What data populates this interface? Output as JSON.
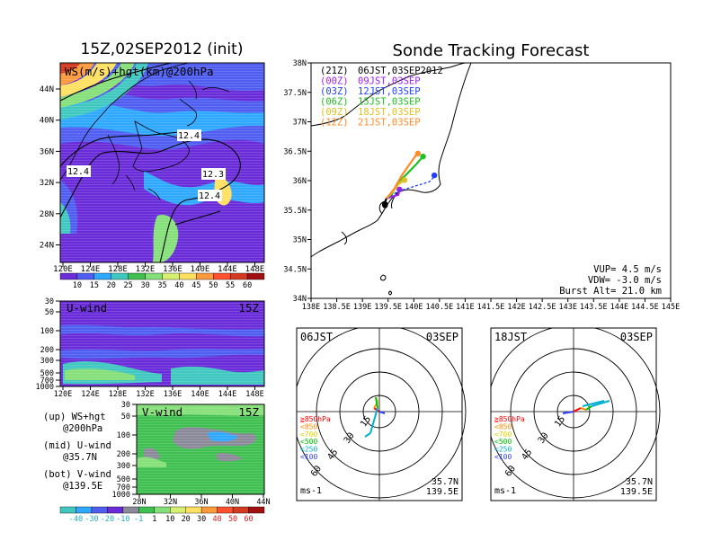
{
  "left_panel": {
    "title": "15Z,02SEP2012 (init)",
    "map_label": "WS(m/s)+hgt(km)@200hPa",
    "lat_ticks": [
      "44N",
      "40N",
      "36N",
      "32N",
      "28N",
      "24N"
    ],
    "lon_ticks": [
      "120E",
      "124E",
      "128E",
      "132E",
      "136E",
      "140E",
      "144E",
      "148E"
    ],
    "contour_labels": [
      "12.4",
      "12.4",
      "12.3",
      "12.4"
    ],
    "ws_colorbar": [
      "10",
      "15",
      "20",
      "25",
      "30",
      "35",
      "40",
      "45",
      "50",
      "55",
      "60"
    ],
    "u_panel": {
      "label": "U-wind",
      "time": "15Z",
      "levels": [
        "30",
        "50",
        "100",
        "200",
        "300",
        "500",
        "700",
        "1000"
      ],
      "lon_ticks": [
        "120E",
        "124E",
        "128E",
        "132E",
        "136E",
        "140E",
        "144E",
        "148E"
      ]
    },
    "v_panel": {
      "label": "V-wind",
      "time": "15Z",
      "levels": [
        "30",
        "50",
        "100",
        "200",
        "300",
        "500",
        "700",
        "1000"
      ],
      "lat_ticks": [
        "28N",
        "32N",
        "36N",
        "40N",
        "44N"
      ]
    },
    "legend": {
      "up": "(up) WS+hgt",
      "up2": "@200hPa",
      "mid": "(mid) U-wind",
      "mid2": "@35.7N",
      "bot": "(bot) V-wind",
      "bot2": "@139.5E"
    },
    "uv_colorbar": [
      "-40",
      "-30",
      "-20",
      "-10",
      "-1",
      "1",
      "10",
      "20",
      "30",
      "40",
      "50",
      "60"
    ]
  },
  "right_panel": {
    "title": "Sonde Tracking Forecast",
    "track_legend": [
      {
        "run": "(21Z)",
        "label": "06JST,03SEP2012",
        "color": "#000000"
      },
      {
        "run": "(00Z)",
        "label": "09JST,03SEP",
        "color": "#a020f0"
      },
      {
        "run": "(03Z)",
        "label": "12JST,03SEP",
        "color": "#2040ff"
      },
      {
        "run": "(06Z)",
        "label": "15JST,03SEP",
        "color": "#20c020"
      },
      {
        "run": "(09Z)",
        "label": "18JST,03SEP",
        "color": "#e0c020"
      },
      {
        "run": "(12Z)",
        "label": "21JST,03SEP",
        "color": "#ff8c28"
      }
    ],
    "lat_ticks": [
      "38N",
      "37.5N",
      "37N",
      "36.5N",
      "36N",
      "35.5N",
      "35N",
      "34.5N",
      "34N"
    ],
    "lon_ticks": [
      "138E",
      "138.5E",
      "139E",
      "139.5E",
      "140E",
      "140.5E",
      "141E",
      "141.5E",
      "142E",
      "142.5E",
      "143E",
      "143.5E",
      "144E",
      "144.5E",
      "145E"
    ],
    "info": {
      "vup": "VUP= 4.5 m/s",
      "vdw": "VDW= -3.0 m/s",
      "burst": "Burst Alt= 21.0 km"
    }
  },
  "hodographs": [
    {
      "time": "06JST",
      "date": "03SEP",
      "lat": "35.7N",
      "lon": "139.5E",
      "unit": "ms-1",
      "rings": [
        "15",
        "30",
        "45",
        "60"
      ]
    },
    {
      "time": "18JST",
      "date": "03SEP",
      "lat": "35.7N",
      "lon": "139.5E",
      "unit": "ms-1",
      "rings": [
        "15",
        "30",
        "45",
        "60"
      ]
    }
  ],
  "hodo_legend": [
    {
      "label": "≧850hPa",
      "color": "#ff0000"
    },
    {
      "label": "<850",
      "color": "#ff8c00"
    },
    {
      "label": "<700",
      "color": "#e0d000"
    },
    {
      "label": "<500",
      "color": "#00c000"
    },
    {
      "label": "<250",
      "color": "#00b0d0"
    },
    {
      "label": "<100",
      "color": "#3040ff"
    }
  ],
  "chart_data": {
    "type": "line",
    "title": "Sonde Tracking Forecast",
    "xlim": [
      138,
      145
    ],
    "ylim": [
      34,
      38
    ],
    "series": [
      {
        "name": "(21Z) 06JST,03SEP2012",
        "color": "#000000",
        "lon": [
          139.47,
          139.45,
          139.42,
          139.44
        ],
        "lat": [
          35.7,
          35.66,
          35.6,
          35.58
        ]
      },
      {
        "name": "(00Z) 09JST,03SEP",
        "color": "#a020f0",
        "lon": [
          139.47,
          139.55,
          139.7,
          139.72
        ],
        "lat": [
          35.7,
          35.72,
          35.76,
          35.85
        ]
      },
      {
        "name": "(03Z) 12JST,03SEP",
        "color": "#2040ff",
        "lon": [
          139.47,
          139.7,
          140.0,
          140.3,
          140.38,
          140.4
        ],
        "lat": [
          35.7,
          35.82,
          35.9,
          35.98,
          36.05,
          36.09
        ]
      },
      {
        "name": "(06Z) 15JST,03SEP",
        "color": "#20c020",
        "lon": [
          139.47,
          139.58,
          139.68,
          139.85,
          140.05,
          140.18
        ],
        "lat": [
          35.7,
          35.78,
          35.96,
          36.1,
          36.28,
          36.41
        ]
      },
      {
        "name": "(09Z) 18JST,03SEP",
        "color": "#e0c020",
        "lon": [
          139.47,
          139.6,
          139.7,
          139.82
        ],
        "lat": [
          35.7,
          35.82,
          35.94,
          36.01
        ]
      },
      {
        "name": "(12Z) 21JST,03SEP",
        "color": "#ff8c28",
        "lon": [
          139.47,
          139.62,
          139.76,
          139.92,
          140.05,
          140.08
        ],
        "lat": [
          35.7,
          35.86,
          36.08,
          36.28,
          36.44,
          36.46
        ]
      }
    ]
  }
}
